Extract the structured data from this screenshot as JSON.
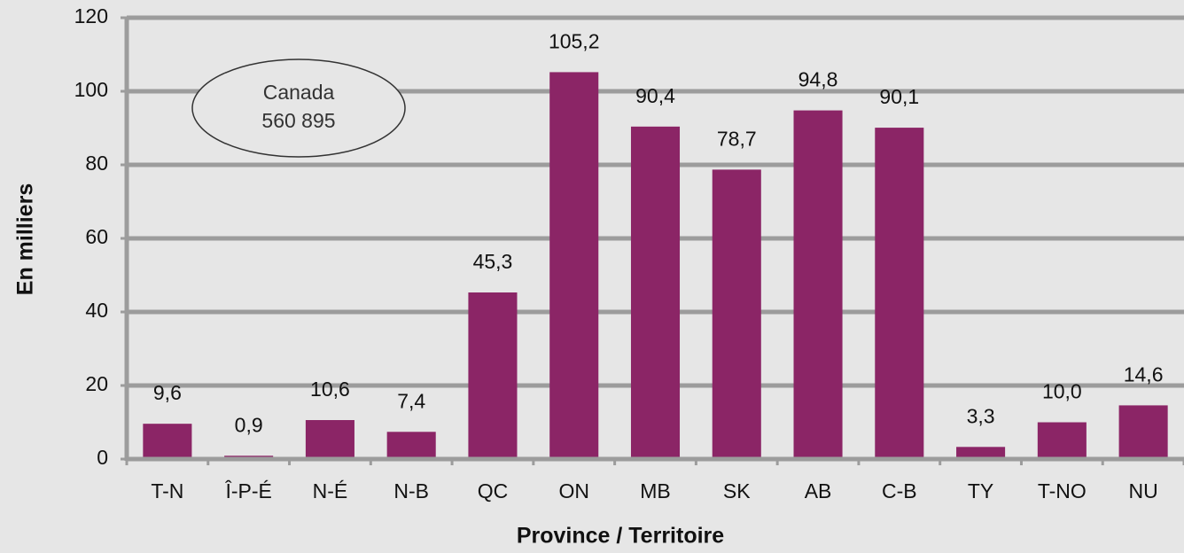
{
  "chart_data": {
    "type": "bar",
    "x_label": "Province / Territoire",
    "y_label": "En milliers",
    "annotation": [
      "Canada",
      "560 895"
    ],
    "categories": [
      "T-N",
      "Î-P-É",
      "N-É",
      "N-B",
      "QC",
      "ON",
      "MB",
      "SK",
      "AB",
      "C-B",
      "TY",
      "T-NO",
      "NU"
    ],
    "values": [
      9.6,
      0.9,
      10.6,
      7.4,
      45.3,
      105.2,
      90.4,
      78.7,
      94.8,
      90.1,
      3.3,
      10.0,
      14.6
    ],
    "value_labels": [
      "9,6",
      "0,9",
      "10,6",
      "7,4",
      "45,3",
      "105,2",
      "90,4",
      "78,7",
      "94,8",
      "90,1",
      "3,3",
      "10,0",
      "14,6"
    ],
    "color": "#8b2566",
    "ylim": [
      0,
      120
    ],
    "yticks": [
      0,
      20,
      40,
      60,
      80,
      100,
      120
    ],
    "grid": true
  }
}
